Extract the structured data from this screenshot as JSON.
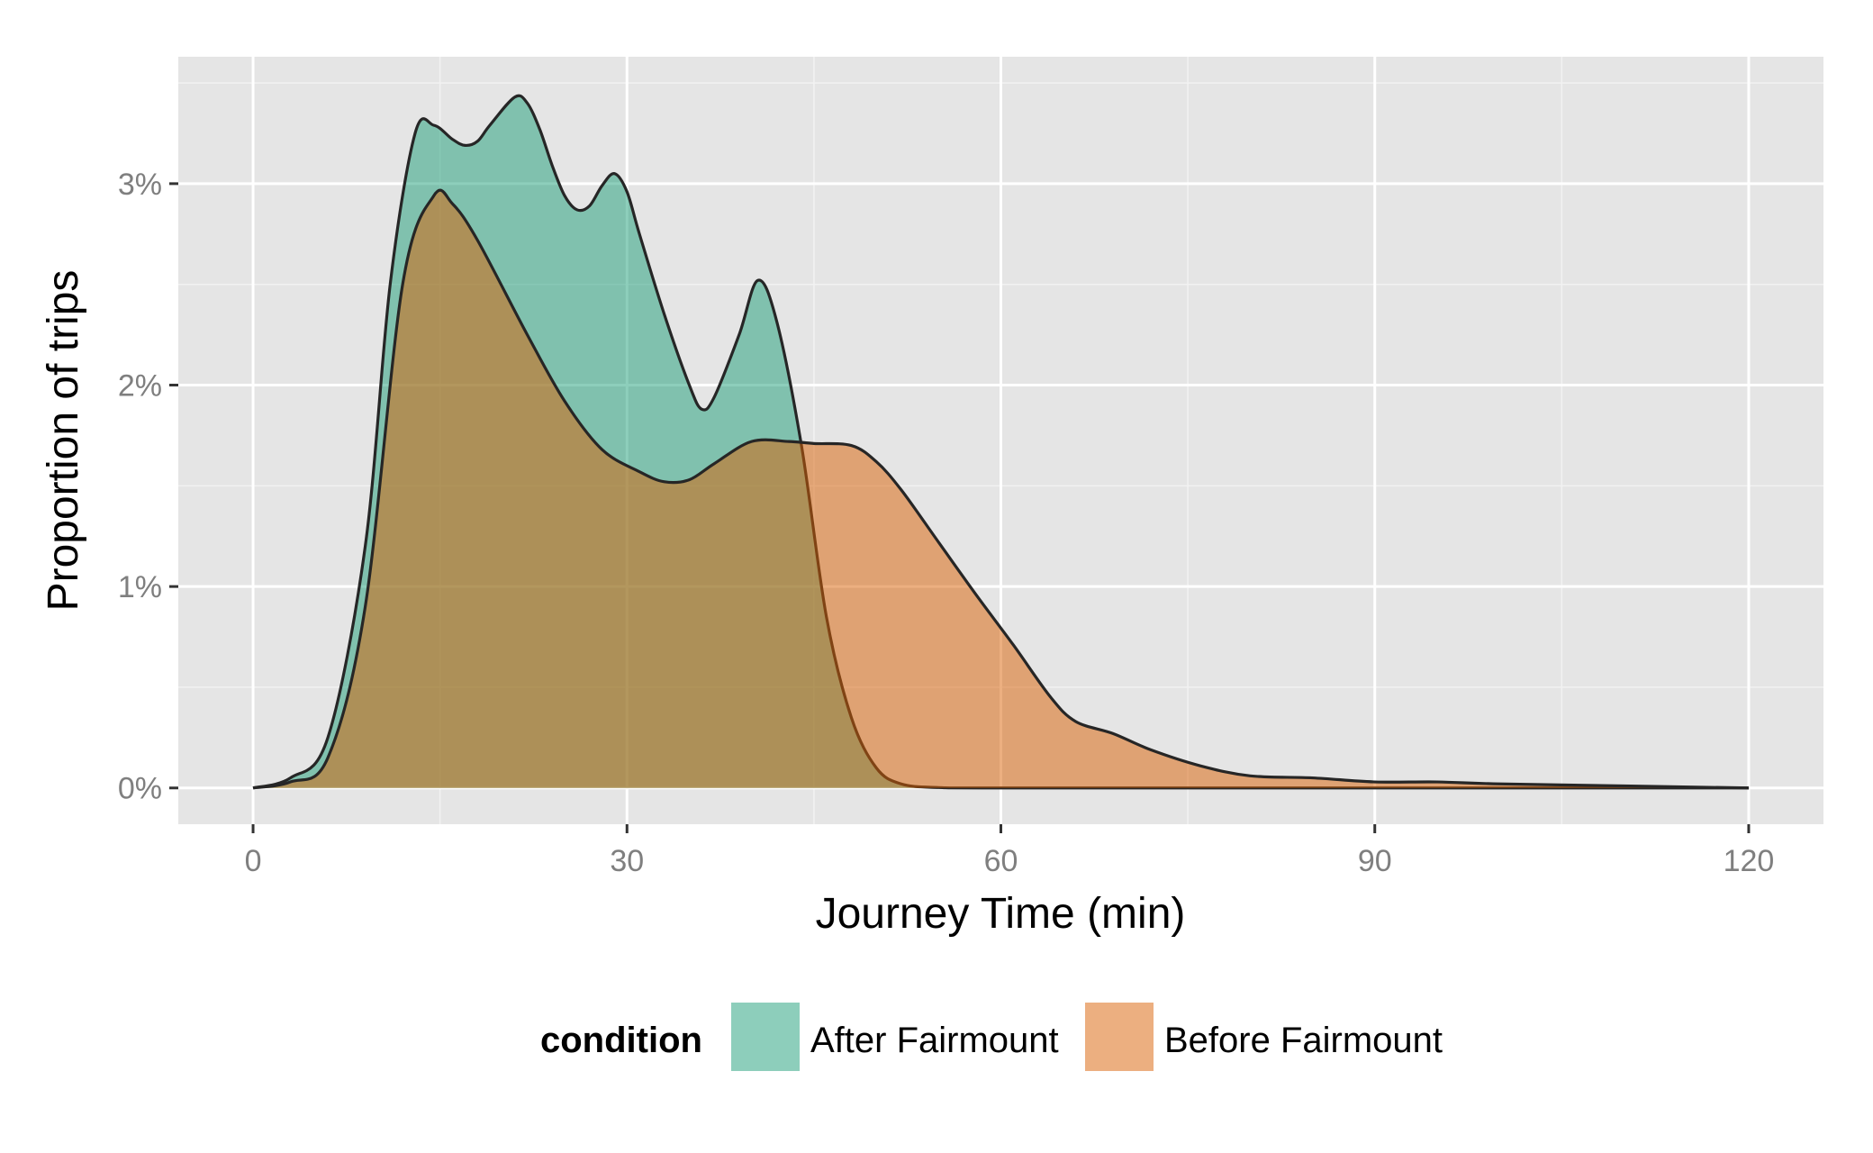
{
  "chart_data": {
    "type": "area",
    "xlabel": "Journey Time (min)",
    "ylabel": "Proportion of trips",
    "xlim": [
      -6,
      126
    ],
    "ylim": [
      -0.0018,
      0.0363
    ],
    "x_ticks": [
      0,
      30,
      60,
      90,
      120
    ],
    "x_tick_labels": [
      "0",
      "30",
      "60",
      "90",
      "120"
    ],
    "y_ticks": [
      0,
      0.01,
      0.02,
      0.03
    ],
    "y_tick_labels": [
      "0%",
      "1%",
      "2%",
      "3%"
    ],
    "grid": true,
    "legend": {
      "title": "condition",
      "position": "bottom"
    },
    "series": [
      {
        "name": "After Fairmount",
        "color": "#1b9e77",
        "x": [
          0,
          3,
          6,
          9,
          11,
          13,
          14.5,
          16,
          17,
          18,
          19,
          21,
          22,
          23,
          24,
          25,
          26,
          27,
          28,
          29,
          30,
          31,
          33,
          35,
          36,
          37,
          39,
          40.5,
          42,
          44,
          46,
          48,
          50,
          52,
          55,
          60,
          90,
          120
        ],
        "y": [
          0,
          0.0005,
          0.0025,
          0.012,
          0.025,
          0.0325,
          0.0329,
          0.0322,
          0.0319,
          0.0321,
          0.0329,
          0.0343,
          0.034,
          0.0327,
          0.0309,
          0.0294,
          0.0287,
          0.0289,
          0.0299,
          0.0305,
          0.0296,
          0.0275,
          0.0235,
          0.02,
          0.0188,
          0.0194,
          0.0225,
          0.0252,
          0.0232,
          0.017,
          0.0085,
          0.0035,
          0.001,
          0.0002,
          2e-05,
          0,
          0,
          0
        ]
      },
      {
        "name": "Before Fairmount",
        "color": "#d95f02",
        "x": [
          0,
          3,
          6,
          9,
          12,
          14.5,
          16,
          18,
          22,
          25,
          28,
          31,
          33,
          35,
          37,
          40,
          43,
          45,
          48,
          50,
          52,
          55,
          58,
          61,
          64,
          66,
          69,
          72,
          76,
          80,
          85,
          90,
          95,
          100,
          110,
          120
        ],
        "y": [
          0,
          0.0003,
          0.0015,
          0.009,
          0.025,
          0.0294,
          0.029,
          0.0272,
          0.0225,
          0.0192,
          0.0168,
          0.0157,
          0.0152,
          0.0153,
          0.0161,
          0.0172,
          0.0172,
          0.0171,
          0.017,
          0.0162,
          0.0148,
          0.0122,
          0.0096,
          0.0071,
          0.0045,
          0.0033,
          0.0027,
          0.0019,
          0.0011,
          0.0006,
          0.0005,
          0.0003,
          0.0003,
          0.0002,
          0.0001,
          0
        ]
      }
    ]
  }
}
